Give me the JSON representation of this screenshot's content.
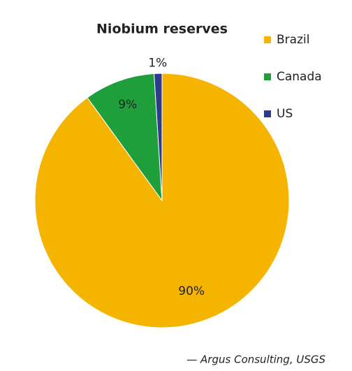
{
  "chart_data": {
    "type": "pie",
    "title": "Niobium reserves",
    "categories": [
      "Brazil",
      "Canada",
      "US"
    ],
    "values": [
      90,
      9,
      1
    ],
    "value_labels": [
      "90%",
      "9%",
      "1%"
    ],
    "colors": [
      "#f5b400",
      "#1f9e3c",
      "#2e3a8c"
    ],
    "legend": "right",
    "source": "— Argus Consulting, USGS"
  }
}
